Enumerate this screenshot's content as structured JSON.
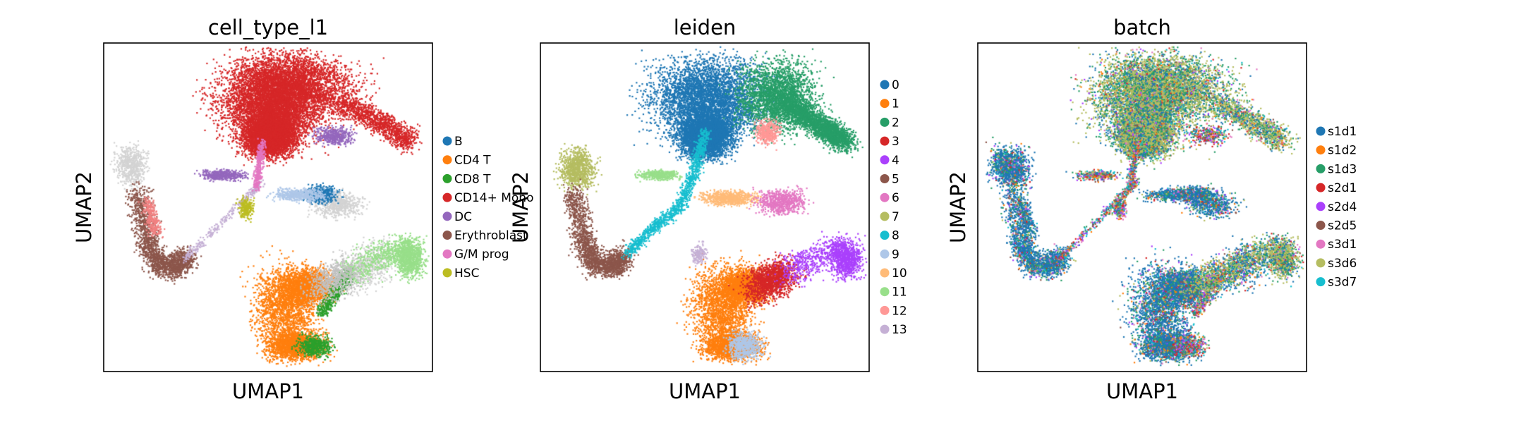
{
  "chart_data": [
    {
      "type": "scatter",
      "title": "cell_type_l1",
      "xlabel": "UMAP1",
      "ylabel": "UMAP2",
      "legend_placement": "right",
      "legend": [
        {
          "label": "B",
          "color": "#1f77b4"
        },
        {
          "label": "CD4 T",
          "color": "#ff7f0e"
        },
        {
          "label": "CD8 T",
          "color": "#2ca02c"
        },
        {
          "label": "CD14+ Mono",
          "color": "#d62728"
        },
        {
          "label": "DC",
          "color": "#9467bd"
        },
        {
          "label": "Erythroblast",
          "color": "#8c564b"
        },
        {
          "label": "G/M prog",
          "color": "#e377c2"
        },
        {
          "label": "HSC",
          "color": "#bcbd22"
        }
      ]
    },
    {
      "type": "scatter",
      "title": "leiden",
      "xlabel": "UMAP1",
      "ylabel": "UMAP2",
      "legend_placement": "right",
      "legend": [
        {
          "label": "0",
          "color": "#1f77b4"
        },
        {
          "label": "1",
          "color": "#ff7f0e"
        },
        {
          "label": "2",
          "color": "#279e68"
        },
        {
          "label": "3",
          "color": "#d62728"
        },
        {
          "label": "4",
          "color": "#aa40fc"
        },
        {
          "label": "5",
          "color": "#8c564b"
        },
        {
          "label": "6",
          "color": "#e377c2"
        },
        {
          "label": "7",
          "color": "#b5bd61"
        },
        {
          "label": "8",
          "color": "#17becf"
        },
        {
          "label": "9",
          "color": "#aec7e8"
        },
        {
          "label": "10",
          "color": "#ffbb78"
        },
        {
          "label": "11",
          "color": "#98df8a"
        },
        {
          "label": "12",
          "color": "#ff9896"
        },
        {
          "label": "13",
          "color": "#c5b0d5"
        }
      ]
    },
    {
      "type": "scatter",
      "title": "batch",
      "xlabel": "UMAP1",
      "ylabel": "UMAP2",
      "legend_placement": "right",
      "legend": [
        {
          "label": "s1d1",
          "color": "#1f77b4"
        },
        {
          "label": "s1d2",
          "color": "#ff7f0e"
        },
        {
          "label": "s1d3",
          "color": "#279e68"
        },
        {
          "label": "s2d1",
          "color": "#d62728"
        },
        {
          "label": "s2d4",
          "color": "#aa40fc"
        },
        {
          "label": "s2d5",
          "color": "#8c564b"
        },
        {
          "label": "s3d1",
          "color": "#e377c2"
        },
        {
          "label": "s3d6",
          "color": "#b5bd61"
        },
        {
          "label": "s3d7",
          "color": "#17becf"
        }
      ]
    }
  ]
}
